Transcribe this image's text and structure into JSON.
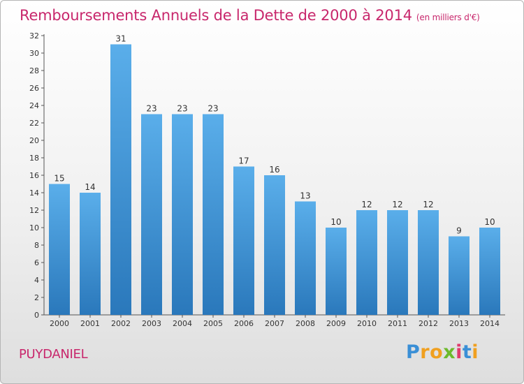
{
  "title": "Remboursements Annuels de la Dette de 2000 à 2014",
  "unit": "(en milliers d'€)",
  "commune": "PUYDANIEL",
  "logo": {
    "text": "Proxiti",
    "letters": [
      "P",
      "r",
      "o",
      "x",
      "i",
      "t",
      "i"
    ],
    "colors": [
      "#3a8fd6",
      "#f0a020",
      "#f0a020",
      "#6cba2c",
      "#e03a6c",
      "#3a8fd6",
      "#f0a020"
    ]
  },
  "colors": {
    "bar_top": "#5aaeea",
    "bar_bottom": "#2a78bb",
    "title": "#c8276c"
  },
  "chart_data": {
    "type": "bar",
    "categories": [
      "2000",
      "2001",
      "2002",
      "2003",
      "2004",
      "2005",
      "2006",
      "2007",
      "2008",
      "2009",
      "2010",
      "2011",
      "2012",
      "2013",
      "2014"
    ],
    "values": [
      15,
      14,
      31,
      23,
      23,
      23,
      17,
      16,
      13,
      10,
      12,
      12,
      12,
      9,
      10
    ],
    "value_labels": [
      "15",
      "14",
      "31",
      "23",
      "23",
      "23",
      "17",
      "16",
      "13",
      "10",
      "12",
      "12",
      "12",
      "9",
      "10"
    ],
    "y_ticks": [
      "0",
      "2",
      "4",
      "6",
      "8",
      "10",
      "12",
      "14",
      "16",
      "18",
      "20",
      "22",
      "24",
      "26",
      "28",
      "30",
      "32"
    ],
    "ylim": [
      0,
      32
    ],
    "grid": false,
    "legend": "none"
  }
}
